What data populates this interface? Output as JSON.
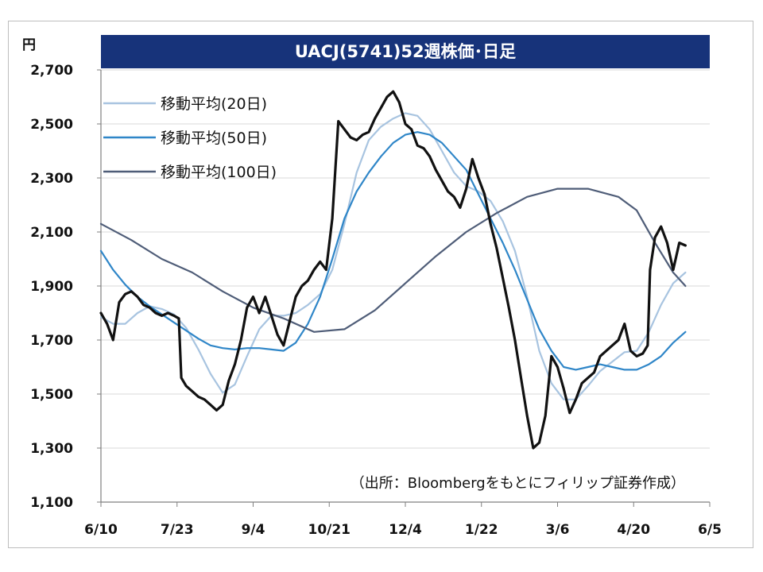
{
  "chart_data": {
    "type": "line",
    "title": "UACJ(5741)52週株価･日足",
    "ylabel": "円",
    "ylim": [
      1100,
      2700
    ],
    "yticks": [
      1100,
      1300,
      1500,
      1700,
      1900,
      2100,
      2300,
      2500,
      2700
    ],
    "ytick_labels": [
      "1,100",
      "1,300",
      "1,500",
      "1,700",
      "1,900",
      "2,100",
      "2,300",
      "2,500",
      "2,700"
    ],
    "xlim": [
      0,
      100
    ],
    "xticks": [
      {
        "x": 0,
        "label": "6/10"
      },
      {
        "x": 12.5,
        "label": "7/23"
      },
      {
        "x": 25,
        "label": "9/4"
      },
      {
        "x": 37.5,
        "label": "10/21"
      },
      {
        "x": 50,
        "label": "12/4"
      },
      {
        "x": 62.5,
        "label": "1/22"
      },
      {
        "x": 75,
        "label": "3/6"
      },
      {
        "x": 87.5,
        "label": "4/20"
      },
      {
        "x": 100,
        "label": "6/5"
      }
    ],
    "grid": true,
    "legend_position": "top-left",
    "source": "（出所：Bloombergをもとにフィリップ証券作成）",
    "series": [
      {
        "name": "",
        "color": "#111111",
        "style": "price",
        "points": [
          [
            0,
            1800
          ],
          [
            1,
            1760
          ],
          [
            2,
            1700
          ],
          [
            3,
            1840
          ],
          [
            4,
            1870
          ],
          [
            5,
            1880
          ],
          [
            6,
            1860
          ],
          [
            7,
            1830
          ],
          [
            8,
            1820
          ],
          [
            9,
            1800
          ],
          [
            10,
            1790
          ],
          [
            11,
            1800
          ],
          [
            12,
            1790
          ],
          [
            12.8,
            1780
          ],
          [
            13.2,
            1560
          ],
          [
            14,
            1530
          ],
          [
            15,
            1510
          ],
          [
            16,
            1490
          ],
          [
            17,
            1480
          ],
          [
            18,
            1460
          ],
          [
            19,
            1440
          ],
          [
            20,
            1460
          ],
          [
            21,
            1550
          ],
          [
            22,
            1610
          ],
          [
            23,
            1700
          ],
          [
            24,
            1820
          ],
          [
            25,
            1860
          ],
          [
            26,
            1800
          ],
          [
            27,
            1860
          ],
          [
            28,
            1790
          ],
          [
            29,
            1720
          ],
          [
            30,
            1680
          ],
          [
            31,
            1770
          ],
          [
            32,
            1860
          ],
          [
            33,
            1900
          ],
          [
            34,
            1920
          ],
          [
            35,
            1960
          ],
          [
            36,
            1990
          ],
          [
            37,
            1960
          ],
          [
            38,
            2150
          ],
          [
            39,
            2510
          ],
          [
            40,
            2480
          ],
          [
            41,
            2450
          ],
          [
            42,
            2440
          ],
          [
            43,
            2460
          ],
          [
            44,
            2470
          ],
          [
            45,
            2520
          ],
          [
            46,
            2560
          ],
          [
            47,
            2600
          ],
          [
            48,
            2620
          ],
          [
            49,
            2580
          ],
          [
            50,
            2500
          ],
          [
            51,
            2480
          ],
          [
            52,
            2420
          ],
          [
            53,
            2410
          ],
          [
            54,
            2380
          ],
          [
            55,
            2330
          ],
          [
            56,
            2290
          ],
          [
            57,
            2250
          ],
          [
            58,
            2230
          ],
          [
            59,
            2190
          ],
          [
            60,
            2260
          ],
          [
            61,
            2370
          ],
          [
            62,
            2300
          ],
          [
            63,
            2240
          ],
          [
            64,
            2130
          ],
          [
            65,
            2040
          ],
          [
            66,
            1930
          ],
          [
            67,
            1820
          ],
          [
            68,
            1700
          ],
          [
            69,
            1560
          ],
          [
            70,
            1420
          ],
          [
            71,
            1300
          ],
          [
            72,
            1320
          ],
          [
            73,
            1420
          ],
          [
            74,
            1640
          ],
          [
            75,
            1600
          ],
          [
            76,
            1520
          ],
          [
            77,
            1430
          ],
          [
            78,
            1480
          ],
          [
            79,
            1540
          ],
          [
            80,
            1560
          ],
          [
            81,
            1580
          ],
          [
            82,
            1640
          ],
          [
            83,
            1660
          ],
          [
            84,
            1680
          ],
          [
            85,
            1700
          ],
          [
            86,
            1760
          ],
          [
            87,
            1660
          ],
          [
            88,
            1640
          ],
          [
            89,
            1650
          ],
          [
            89.8,
            1680
          ],
          [
            90.2,
            1960
          ],
          [
            91,
            2080
          ],
          [
            92,
            2120
          ],
          [
            93,
            2060
          ],
          [
            94,
            1960
          ],
          [
            95,
            2060
          ],
          [
            96,
            2050
          ]
        ]
      },
      {
        "name": "移動平均(20日)",
        "color": "#a8c4e0",
        "points": [
          [
            0,
            1785
          ],
          [
            2,
            1760
          ],
          [
            4,
            1760
          ],
          [
            6,
            1800
          ],
          [
            8,
            1825
          ],
          [
            10,
            1815
          ],
          [
            12,
            1795
          ],
          [
            14,
            1745
          ],
          [
            16,
            1665
          ],
          [
            18,
            1575
          ],
          [
            20,
            1505
          ],
          [
            22,
            1535
          ],
          [
            24,
            1640
          ],
          [
            26,
            1740
          ],
          [
            28,
            1790
          ],
          [
            30,
            1790
          ],
          [
            32,
            1800
          ],
          [
            34,
            1830
          ],
          [
            36,
            1870
          ],
          [
            38,
            1960
          ],
          [
            40,
            2130
          ],
          [
            42,
            2320
          ],
          [
            44,
            2440
          ],
          [
            46,
            2490
          ],
          [
            48,
            2520
          ],
          [
            50,
            2540
          ],
          [
            52,
            2530
          ],
          [
            54,
            2480
          ],
          [
            56,
            2400
          ],
          [
            58,
            2320
          ],
          [
            60,
            2270
          ],
          [
            62,
            2250
          ],
          [
            64,
            2215
          ],
          [
            66,
            2140
          ],
          [
            68,
            2030
          ],
          [
            70,
            1860
          ],
          [
            72,
            1660
          ],
          [
            74,
            1540
          ],
          [
            76,
            1480
          ],
          [
            78,
            1480
          ],
          [
            80,
            1530
          ],
          [
            82,
            1585
          ],
          [
            84,
            1620
          ],
          [
            86,
            1655
          ],
          [
            88,
            1660
          ],
          [
            90,
            1730
          ],
          [
            92,
            1830
          ],
          [
            94,
            1910
          ],
          [
            96,
            1950
          ]
        ]
      },
      {
        "name": "移動平均(50日)",
        "color": "#2f86c8",
        "points": [
          [
            0,
            2030
          ],
          [
            2,
            1960
          ],
          [
            4,
            1905
          ],
          [
            6,
            1860
          ],
          [
            8,
            1825
          ],
          [
            10,
            1795
          ],
          [
            12,
            1765
          ],
          [
            14,
            1735
          ],
          [
            16,
            1705
          ],
          [
            18,
            1680
          ],
          [
            20,
            1670
          ],
          [
            22,
            1665
          ],
          [
            24,
            1670
          ],
          [
            26,
            1670
          ],
          [
            28,
            1665
          ],
          [
            30,
            1660
          ],
          [
            32,
            1690
          ],
          [
            34,
            1760
          ],
          [
            36,
            1860
          ],
          [
            38,
            2000
          ],
          [
            40,
            2150
          ],
          [
            42,
            2250
          ],
          [
            44,
            2320
          ],
          [
            46,
            2380
          ],
          [
            48,
            2430
          ],
          [
            50,
            2460
          ],
          [
            52,
            2470
          ],
          [
            54,
            2460
          ],
          [
            56,
            2430
          ],
          [
            58,
            2380
          ],
          [
            60,
            2330
          ],
          [
            62,
            2240
          ],
          [
            64,
            2150
          ],
          [
            66,
            2060
          ],
          [
            68,
            1960
          ],
          [
            70,
            1850
          ],
          [
            72,
            1740
          ],
          [
            74,
            1660
          ],
          [
            76,
            1600
          ],
          [
            78,
            1590
          ],
          [
            80,
            1600
          ],
          [
            82,
            1610
          ],
          [
            84,
            1600
          ],
          [
            86,
            1590
          ],
          [
            88,
            1590
          ],
          [
            90,
            1610
          ],
          [
            92,
            1640
          ],
          [
            94,
            1690
          ],
          [
            96,
            1730
          ]
        ]
      },
      {
        "name": "移動平均(100日)",
        "color": "#4f5d78",
        "points": [
          [
            0,
            2130
          ],
          [
            5,
            2070
          ],
          [
            10,
            2000
          ],
          [
            15,
            1950
          ],
          [
            20,
            1880
          ],
          [
            25,
            1820
          ],
          [
            30,
            1780
          ],
          [
            35,
            1730
          ],
          [
            40,
            1740
          ],
          [
            45,
            1810
          ],
          [
            50,
            1910
          ],
          [
            55,
            2010
          ],
          [
            60,
            2100
          ],
          [
            65,
            2170
          ],
          [
            70,
            2230
          ],
          [
            75,
            2260
          ],
          [
            80,
            2260
          ],
          [
            85,
            2230
          ],
          [
            88,
            2180
          ],
          [
            91,
            2060
          ],
          [
            94,
            1950
          ],
          [
            96,
            1900
          ]
        ]
      }
    ]
  }
}
